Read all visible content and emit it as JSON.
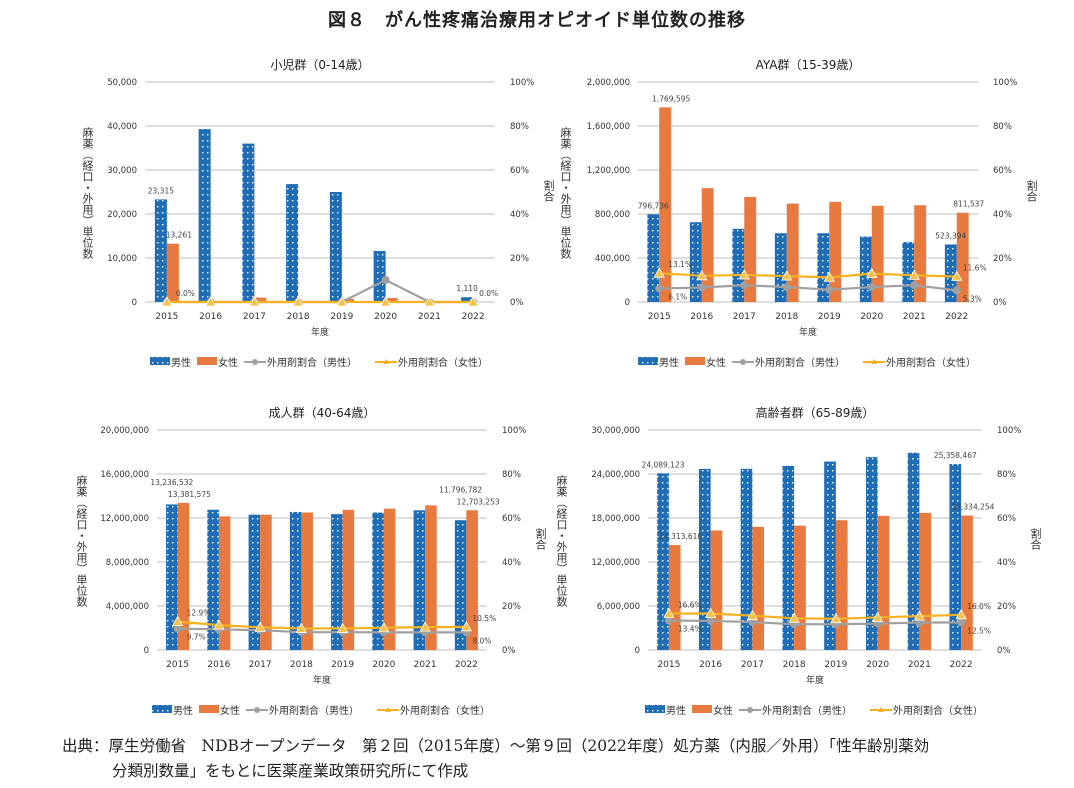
{
  "title": "図８　がん性疼痛治療用オピオイド単位数の推移",
  "footer": {
    "line1": "出典：厚生労働省　NDBオープンデータ　第２回（2015年度）～第９回（2022年度）処方薬（内服／外用）「性年齢別薬効",
    "line2": "分類別数量」をもとに医薬産業政策研究所にて作成"
  },
  "colors": {
    "male_bar": "#1F6DB5",
    "female_bar": "#E8793F",
    "male_ratio": "#A0A0A0",
    "female_ratio": "#F5B11F",
    "grid": "#BFBFBF"
  },
  "chart_data": [
    {
      "type": "bar+line",
      "title": "小児群（0-14歳）",
      "xlabel": "年度",
      "ylabel": "麻薬（経口・外用）単位数",
      "y2label": "割合",
      "categories": [
        "2015",
        "2016",
        "2017",
        "2018",
        "2019",
        "2020",
        "2021",
        "2022"
      ],
      "ylim": [
        0,
        50000
      ],
      "yticks": [
        "0",
        "10,000",
        "20,000",
        "30,000",
        "40,000",
        "50,000"
      ],
      "y2lim": [
        0,
        100
      ],
      "y2ticks": [
        "0%",
        "20%",
        "40%",
        "60%",
        "80%",
        "100%"
      ],
      "grid": true,
      "legend": "bottom",
      "series": [
        {
          "name": "男性",
          "kind": "bar",
          "values": [
            23315,
            39300,
            36000,
            26800,
            25000,
            11600,
            0,
            1110
          ],
          "labels": [
            "23,315",
            null,
            null,
            null,
            null,
            null,
            null,
            "1,110"
          ]
        },
        {
          "name": "女性",
          "kind": "bar",
          "values": [
            13261,
            0,
            1000,
            0,
            700,
            900,
            0,
            0
          ],
          "labels": [
            "13,261",
            null,
            null,
            null,
            null,
            null,
            null,
            null
          ]
        },
        {
          "name": "外用剤割合（男性）",
          "kind": "line",
          "axis": "right",
          "values": [
            0,
            0,
            0,
            0,
            0,
            10,
            0,
            0
          ],
          "labels": [
            null,
            null,
            null,
            null,
            null,
            null,
            null,
            null
          ]
        },
        {
          "name": "外用剤割合（女性）",
          "kind": "line",
          "axis": "right",
          "values": [
            0,
            0,
            0,
            0,
            0,
            0,
            0,
            0
          ],
          "labels": [
            "0.0%",
            null,
            null,
            null,
            null,
            null,
            null,
            "0.0%"
          ]
        }
      ]
    },
    {
      "type": "bar+line",
      "title": "AYA群（15-39歳）",
      "xlabel": "年度",
      "ylabel": "麻薬（経口・外用）単位数",
      "y2label": "割合",
      "categories": [
        "2015",
        "2016",
        "2017",
        "2018",
        "2019",
        "2020",
        "2021",
        "2022"
      ],
      "ylim": [
        0,
        2000000
      ],
      "yticks": [
        "0",
        "400,000",
        "800,000",
        "1,200,000",
        "1,600,000",
        "2,000,000"
      ],
      "y2lim": [
        0,
        100
      ],
      "y2ticks": [
        "0%",
        "20%",
        "40%",
        "60%",
        "80%",
        "100%"
      ],
      "grid": true,
      "legend": "bottom",
      "series": [
        {
          "name": "男性",
          "kind": "bar",
          "values": [
            796736,
            725000,
            665000,
            625000,
            625000,
            595000,
            545000,
            523394
          ],
          "labels": [
            "796,736",
            null,
            null,
            null,
            null,
            null,
            null,
            "523,394"
          ]
        },
        {
          "name": "女性",
          "kind": "bar",
          "values": [
            1769595,
            1035000,
            955000,
            895000,
            910000,
            875000,
            880000,
            811537
          ],
          "labels": [
            "1,769,595",
            null,
            null,
            null,
            null,
            null,
            null,
            "811,537"
          ]
        },
        {
          "name": "外用剤割合（男性）",
          "kind": "line",
          "axis": "right",
          "values": [
            6.1,
            6.6,
            7.6,
            6.8,
            5.6,
            6.8,
            7.6,
            5.3
          ],
          "labels": [
            "6.1%",
            null,
            null,
            null,
            null,
            null,
            null,
            "5.3%"
          ]
        },
        {
          "name": "外用剤割合（女性）",
          "kind": "line",
          "axis": "right",
          "values": [
            13.1,
            11.9,
            12.3,
            11.8,
            11.2,
            12.9,
            12.1,
            11.6
          ],
          "labels": [
            "13.1%",
            null,
            null,
            null,
            null,
            null,
            null,
            "11.6%"
          ]
        }
      ]
    },
    {
      "type": "bar+line",
      "title": "成人群（40-64歳）",
      "xlabel": "年度",
      "ylabel": "麻薬（経口・外用）単位数",
      "y2label": "割合",
      "categories": [
        "2015",
        "2016",
        "2017",
        "2018",
        "2019",
        "2020",
        "2021",
        "2022"
      ],
      "ylim": [
        0,
        20000000
      ],
      "yticks": [
        "0",
        "4,000,000",
        "8,000,000",
        "12,000,000",
        "16,000,000",
        "20,000,000"
      ],
      "y2lim": [
        0,
        100
      ],
      "y2ticks": [
        "0%",
        "20%",
        "40%",
        "60%",
        "80%",
        "100%"
      ],
      "grid": true,
      "legend": "bottom",
      "series": [
        {
          "name": "男性",
          "kind": "bar",
          "values": [
            13236532,
            12750000,
            12300000,
            12550000,
            12350000,
            12500000,
            12700000,
            11796782
          ],
          "labels": [
            "13,236,532",
            null,
            null,
            null,
            null,
            null,
            null,
            "11,796,782"
          ]
        },
        {
          "name": "女性",
          "kind": "bar",
          "values": [
            13381575,
            12150000,
            12300000,
            12500000,
            12750000,
            12850000,
            13150000,
            12703253
          ],
          "labels": [
            "13,381,575",
            null,
            null,
            null,
            null,
            null,
            null,
            "12,703,253"
          ]
        },
        {
          "name": "外用剤割合（男性）",
          "kind": "line",
          "axis": "right",
          "values": [
            9.7,
            9.4,
            9.0,
            8.1,
            8.1,
            8.0,
            8.0,
            8.0
          ],
          "labels": [
            "9.7%",
            null,
            null,
            null,
            null,
            null,
            null,
            "8.0%"
          ]
        },
        {
          "name": "外用剤割合（女性）",
          "kind": "line",
          "axis": "right",
          "values": [
            12.9,
            11.3,
            10.3,
            9.8,
            9.8,
            10.1,
            10.4,
            10.5
          ],
          "labels": [
            "12.9%",
            null,
            null,
            null,
            null,
            null,
            null,
            "10.5%"
          ]
        }
      ]
    },
    {
      "type": "bar+line",
      "title": "高齢者群（65-89歳）",
      "xlabel": "年度",
      "ylabel": "麻薬（経口・外用）単位数",
      "y2label": "割合",
      "categories": [
        "2015",
        "2016",
        "2017",
        "2018",
        "2019",
        "2020",
        "2021",
        "2022"
      ],
      "ylim": [
        0,
        30000000
      ],
      "yticks": [
        "0",
        "6,000,000",
        "12,000,000",
        "18,000,000",
        "24,000,000",
        "30,000,000"
      ],
      "y2lim": [
        0,
        100
      ],
      "y2ticks": [
        "0%",
        "20%",
        "40%",
        "60%",
        "80%",
        "100%"
      ],
      "grid": true,
      "legend": "bottom",
      "series": [
        {
          "name": "男性",
          "kind": "bar",
          "values": [
            24089123,
            24700000,
            24700000,
            25100000,
            25700000,
            26300000,
            26900000,
            25358467
          ],
          "labels": [
            "24,089,123",
            null,
            null,
            null,
            null,
            null,
            null,
            "25,358,467"
          ]
        },
        {
          "name": "女性",
          "kind": "bar",
          "values": [
            14313610,
            16300000,
            16800000,
            16950000,
            17700000,
            18300000,
            18700000,
            18334254
          ],
          "labels": [
            "14,313,610",
            null,
            null,
            null,
            null,
            null,
            null,
            "18,334,254"
          ]
        },
        {
          "name": "外用剤割合（男性）",
          "kind": "line",
          "axis": "right",
          "values": [
            13.4,
            13.2,
            12.7,
            11.7,
            11.7,
            12.0,
            12.5,
            12.5
          ],
          "labels": [
            "13.4%",
            null,
            null,
            null,
            null,
            null,
            null,
            "12.5%"
          ]
        },
        {
          "name": "外用剤割合（女性）",
          "kind": "line",
          "axis": "right",
          "values": [
            16.6,
            16.6,
            15.6,
            14.4,
            14.2,
            14.8,
            15.4,
            16.0
          ],
          "labels": [
            "16.6%",
            null,
            null,
            null,
            null,
            null,
            null,
            "16.0%"
          ]
        }
      ]
    }
  ]
}
